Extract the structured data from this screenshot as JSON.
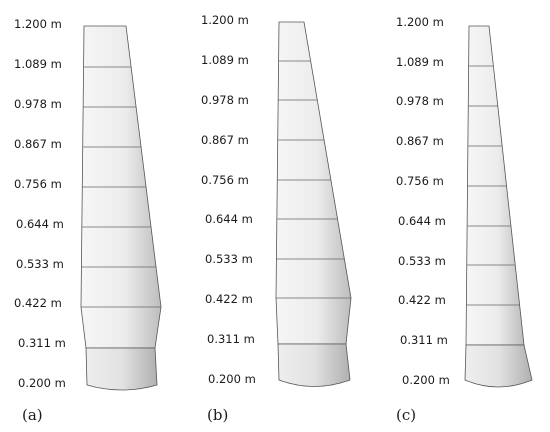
{
  "panels": [
    {
      "label": "(a)",
      "heights": [
        "1.200 m",
        "1.089 m",
        "0.978 m",
        "0.867 m",
        "0.756 m",
        "0.644 m",
        "0.533 m",
        "0.422 m",
        "0.311 m",
        "0.200 m"
      ]
    },
    {
      "label": "(b)",
      "heights": [
        "1.200 m",
        "1.089 m",
        "0.978 m",
        "0.867 m",
        "0.756 m",
        "0.644 m",
        "0.533 m",
        "0.422 m",
        "0.311 m",
        "0.200 m"
      ]
    },
    {
      "label": "(c)",
      "heights": [
        "1.200 m",
        "1.089 m",
        "0.978 m",
        "0.867 m",
        "0.756 m",
        "0.644 m",
        "0.533 m",
        "0.422 m",
        "0.311 m",
        "0.200 m"
      ]
    }
  ],
  "colors": {
    "surface_light": "#f4f4f4",
    "surface_shade": "#c8c8c8",
    "edge": "#555555",
    "text": "#1a1a1a"
  }
}
